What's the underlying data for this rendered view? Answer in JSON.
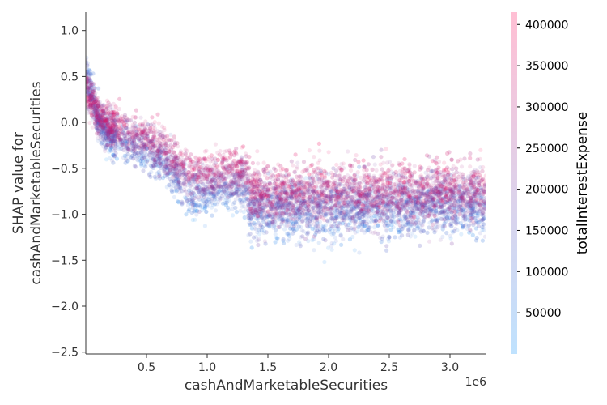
{
  "chart_data": {
    "type": "scatter",
    "xlabel": "cashAndMarketableSecurities",
    "ylabel_lines": [
      "SHAP value for",
      "cashAndMarketableSecurities"
    ],
    "x_offset_label": "1e6",
    "xlim": [
      0.0,
      3.3
    ],
    "ylim": [
      -2.52,
      1.2
    ],
    "x_ticks": [
      0.5,
      1.0,
      1.5,
      2.0,
      2.5,
      3.0
    ],
    "x_tick_labels": [
      "0.5",
      "1.0",
      "1.5",
      "2.0",
      "2.5",
      "3.0"
    ],
    "y_ticks": [
      1.0,
      0.5,
      0.0,
      -0.5,
      -1.0,
      -1.5,
      -2.0,
      -2.5
    ],
    "y_tick_labels": [
      "1.0",
      "0.5",
      "0.0",
      "−0.5",
      "−1.0",
      "−1.5",
      "−2.0",
      "−2.5"
    ],
    "grid": false,
    "point_alpha": 0.12,
    "point_count": 9000,
    "trend": {
      "x": [
        0.0,
        0.02,
        0.05,
        0.1,
        0.15,
        0.2,
        0.3,
        0.4,
        0.5,
        0.6,
        0.65,
        0.7,
        0.8,
        0.9,
        1.0,
        1.1,
        1.2,
        1.33,
        1.34,
        1.5,
        2.0,
        2.5,
        3.0,
        3.3
      ],
      "y_low_color": [
        0.65,
        0.5,
        0.35,
        0.0,
        -0.15,
        -0.25,
        -0.32,
        -0.38,
        -0.42,
        -0.55,
        -0.6,
        -0.7,
        -0.85,
        -0.95,
        -0.95,
        -0.93,
        -0.92,
        -0.92,
        -1.1,
        -1.1,
        -1.08,
        -1.07,
        -1.05,
        -1.05
      ],
      "y_high_color": [
        0.35,
        0.25,
        0.15,
        0.1,
        0.08,
        0.05,
        0.02,
        -0.02,
        -0.05,
        -0.12,
        -0.18,
        -0.25,
        -0.33,
        -0.38,
        -0.38,
        -0.35,
        -0.34,
        -0.34,
        -0.62,
        -0.62,
        -0.62,
        -0.62,
        -0.6,
        -0.6
      ],
      "spread": [
        0.1,
        0.1,
        0.1,
        0.1,
        0.1,
        0.1,
        0.1,
        0.1,
        0.1,
        0.1,
        0.1,
        0.1,
        0.1,
        0.1,
        0.1,
        0.1,
        0.1,
        0.1,
        0.15,
        0.15,
        0.15,
        0.15,
        0.15,
        0.15
      ]
    },
    "colorbar": {
      "label": "totalInterestExpense",
      "range": [
        0,
        415000
      ],
      "ticks": [
        50000,
        100000,
        150000,
        200000,
        250000,
        300000,
        350000,
        400000
      ],
      "tick_labels": [
        "50000",
        "100000",
        "150000",
        "200000",
        "250000",
        "300000",
        "350000",
        "400000"
      ],
      "color_low": "#008bfb",
      "color_high": "#ff0052"
    }
  }
}
